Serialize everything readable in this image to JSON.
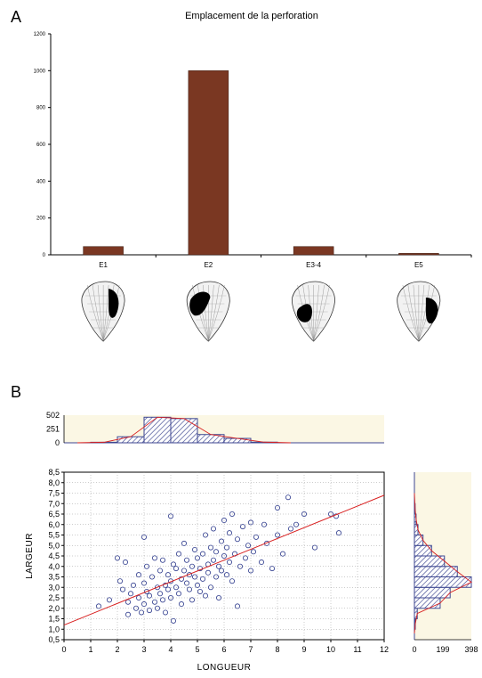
{
  "colors": {
    "bar": "#7a3722",
    "scatter_point": "#2d3a8c",
    "regression_line": "#d82020",
    "histogram_bar": "#3c4690",
    "histogram_panel": "#fbf7e4",
    "grid": "#999999"
  },
  "panel_a": {
    "letter": "A",
    "chart_data": {
      "type": "bar",
      "title": "Emplacement de la perforation",
      "categories": [
        "E1",
        "E2",
        "E3-4",
        "E5"
      ],
      "values": [
        45,
        1000,
        45,
        8
      ],
      "ylim": [
        0,
        1200
      ],
      "yticks": [
        "0",
        "200",
        "400",
        "600",
        "800",
        "1000",
        "1200"
      ],
      "grid": false
    },
    "shell_icons": [
      "shell-e1-icon",
      "shell-e2-icon",
      "shell-e3-4-icon",
      "shell-e5-icon"
    ]
  },
  "panel_b": {
    "letter": "B",
    "chart_data": {
      "type": "scatter",
      "xlabel": "LONGUEUR",
      "ylabel": "LARGEUR",
      "xlim": [
        0,
        12
      ],
      "ylim": [
        0.5,
        8.5
      ],
      "xticks": [
        "0",
        "1",
        "2",
        "3",
        "4",
        "5",
        "6",
        "7",
        "8",
        "9",
        "10",
        "11",
        "12"
      ],
      "yticks": [
        "0,5",
        "1,0",
        "1,5",
        "2,0",
        "2,5",
        "3,0",
        "3,5",
        "4,0",
        "4,5",
        "5,0",
        "5,5",
        "6,0",
        "6,5",
        "7,0",
        "7,5",
        "8,0",
        "8,5"
      ],
      "grid": true,
      "regression_line": {
        "x": [
          0,
          12
        ],
        "y": [
          1.2,
          7.4
        ]
      },
      "points": [
        [
          1.3,
          2.1
        ],
        [
          1.7,
          2.4
        ],
        [
          2.0,
          4.4
        ],
        [
          2.1,
          3.3
        ],
        [
          2.2,
          2.9
        ],
        [
          2.3,
          4.2
        ],
        [
          2.4,
          2.3
        ],
        [
          2.4,
          1.7
        ],
        [
          2.5,
          2.7
        ],
        [
          2.6,
          3.1
        ],
        [
          2.7,
          2.0
        ],
        [
          2.8,
          2.5
        ],
        [
          2.8,
          3.6
        ],
        [
          2.9,
          1.8
        ],
        [
          3.0,
          5.4
        ],
        [
          3.0,
          2.2
        ],
        [
          3.0,
          3.2
        ],
        [
          3.1,
          2.8
        ],
        [
          3.1,
          4.0
        ],
        [
          3.2,
          1.9
        ],
        [
          3.2,
          2.6
        ],
        [
          3.3,
          3.5
        ],
        [
          3.4,
          2.3
        ],
        [
          3.4,
          4.4
        ],
        [
          3.5,
          3.0
        ],
        [
          3.5,
          2.0
        ],
        [
          3.6,
          3.8
        ],
        [
          3.6,
          2.7
        ],
        [
          3.7,
          2.4
        ],
        [
          3.7,
          4.3
        ],
        [
          3.8,
          3.1
        ],
        [
          3.8,
          1.8
        ],
        [
          3.9,
          3.6
        ],
        [
          3.9,
          2.9
        ],
        [
          4.0,
          3.3
        ],
        [
          4.0,
          6.4
        ],
        [
          4.0,
          2.5
        ],
        [
          4.1,
          4.1
        ],
        [
          4.1,
          1.4
        ],
        [
          4.2,
          3.0
        ],
        [
          4.2,
          3.9
        ],
        [
          4.3,
          2.7
        ],
        [
          4.3,
          4.6
        ],
        [
          4.4,
          3.4
        ],
        [
          4.4,
          2.2
        ],
        [
          4.5,
          3.8
        ],
        [
          4.5,
          5.1
        ],
        [
          4.6,
          3.2
        ],
        [
          4.6,
          4.3
        ],
        [
          4.7,
          2.9
        ],
        [
          4.7,
          3.6
        ],
        [
          4.8,
          4.0
        ],
        [
          4.8,
          2.4
        ],
        [
          4.9,
          3.5
        ],
        [
          4.9,
          4.8
        ],
        [
          5.0,
          3.1
        ],
        [
          5.0,
          4.4
        ],
        [
          5.1,
          2.8
        ],
        [
          5.1,
          3.9
        ],
        [
          5.2,
          4.6
        ],
        [
          5.2,
          3.4
        ],
        [
          5.3,
          5.5
        ],
        [
          5.3,
          2.6
        ],
        [
          5.4,
          4.1
        ],
        [
          5.4,
          3.7
        ],
        [
          5.5,
          4.9
        ],
        [
          5.5,
          3.0
        ],
        [
          5.6,
          4.3
        ],
        [
          5.6,
          5.8
        ],
        [
          5.7,
          3.5
        ],
        [
          5.7,
          4.7
        ],
        [
          5.8,
          4.0
        ],
        [
          5.8,
          2.5
        ],
        [
          5.9,
          5.2
        ],
        [
          5.9,
          3.8
        ],
        [
          6.0,
          4.5
        ],
        [
          6.0,
          6.2
        ],
        [
          6.1,
          3.6
        ],
        [
          6.1,
          4.9
        ],
        [
          6.2,
          4.2
        ],
        [
          6.2,
          5.6
        ],
        [
          6.3,
          3.3
        ],
        [
          6.3,
          6.5
        ],
        [
          6.4,
          4.6
        ],
        [
          6.5,
          5.3
        ],
        [
          6.5,
          2.1
        ],
        [
          6.6,
          4.0
        ],
        [
          6.7,
          5.9
        ],
        [
          6.8,
          4.4
        ],
        [
          6.9,
          5.0
        ],
        [
          7.0,
          6.1
        ],
        [
          7.0,
          3.8
        ],
        [
          7.1,
          4.7
        ],
        [
          7.2,
          5.4
        ],
        [
          7.4,
          4.2
        ],
        [
          7.5,
          6.0
        ],
        [
          7.6,
          5.1
        ],
        [
          7.8,
          3.9
        ],
        [
          8.0,
          5.5
        ],
        [
          8.0,
          6.8
        ],
        [
          8.2,
          4.6
        ],
        [
          8.4,
          7.3
        ],
        [
          8.5,
          5.8
        ],
        [
          8.7,
          6.0
        ],
        [
          9.0,
          6.5
        ],
        [
          9.4,
          4.9
        ],
        [
          10.0,
          6.5
        ],
        [
          10.2,
          6.4
        ],
        [
          10.3,
          5.6
        ]
      ]
    },
    "histogram_x": {
      "yticks": [
        "502",
        "251",
        "0"
      ],
      "bins": [
        {
          "from": 1,
          "to": 2,
          "count": 10
        },
        {
          "from": 2,
          "to": 3,
          "count": 110
        },
        {
          "from": 3,
          "to": 4,
          "count": 465
        },
        {
          "from": 4,
          "to": 5,
          "count": 440
        },
        {
          "from": 5,
          "to": 6,
          "count": 150
        },
        {
          "from": 6,
          "to": 7,
          "count": 80
        },
        {
          "from": 7,
          "to": 8,
          "count": 12
        }
      ]
    },
    "histogram_y": {
      "xticks": [
        "0",
        "199",
        "398"
      ],
      "bins": [
        {
          "from": 1.0,
          "to": 1.5,
          "count": 6
        },
        {
          "from": 1.5,
          "to": 2.0,
          "count": 20
        },
        {
          "from": 2.0,
          "to": 2.5,
          "count": 180
        },
        {
          "from": 2.5,
          "to": 3.0,
          "count": 250
        },
        {
          "from": 3.0,
          "to": 3.5,
          "count": 398
        },
        {
          "from": 3.5,
          "to": 4.0,
          "count": 300
        },
        {
          "from": 4.0,
          "to": 4.5,
          "count": 210
        },
        {
          "from": 4.5,
          "to": 5.0,
          "count": 120
        },
        {
          "from": 5.0,
          "to": 5.5,
          "count": 60
        },
        {
          "from": 5.5,
          "to": 6.0,
          "count": 25
        },
        {
          "from": 6.0,
          "to": 6.5,
          "count": 12
        },
        {
          "from": 6.5,
          "to": 7.0,
          "count": 5
        }
      ]
    }
  }
}
